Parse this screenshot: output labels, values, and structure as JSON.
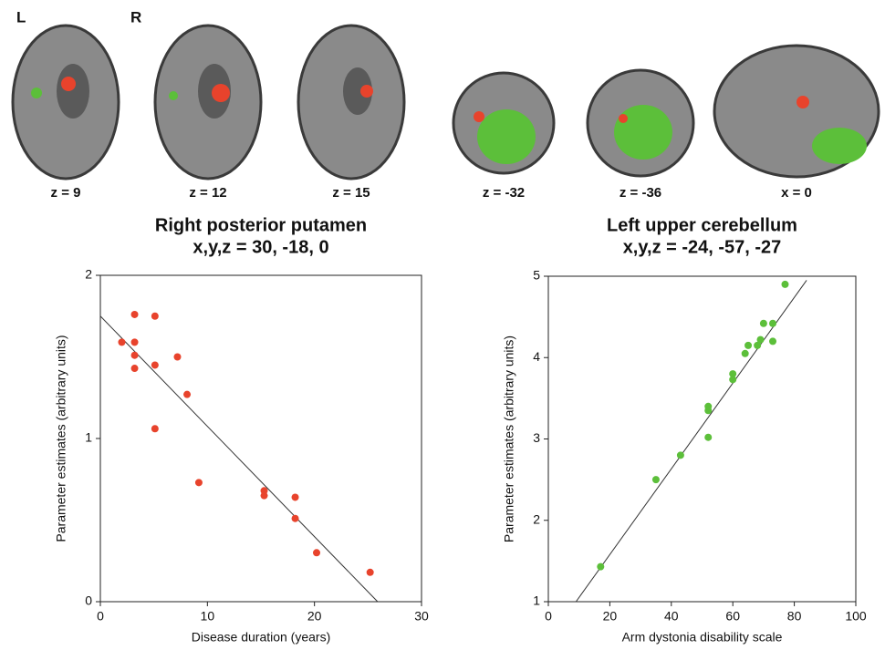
{
  "images": {
    "left_label": "L",
    "right_label": "R",
    "slice_labels": [
      "z = 9",
      "z = 12",
      "z = 15",
      "z = -32",
      "z = -36",
      "x = 0"
    ]
  },
  "chart_data": [
    {
      "type": "scatter",
      "title": "Right posterior putamen",
      "subtitle": "x,y,z = 30, -18, 0",
      "xlabel": "Disease duration  (years)",
      "ylabel": "Parameter estimates (arbitrary units)",
      "xlim": [
        0,
        30
      ],
      "xticks": [
        0,
        10,
        20,
        30
      ],
      "ylim": [
        0,
        2
      ],
      "yticks": [
        0,
        1,
        2
      ],
      "color": "#e8432c",
      "fit_color": "#333333",
      "x": [
        2,
        3.2,
        3.2,
        3.2,
        3.2,
        5.1,
        5.1,
        5.1,
        7.2,
        8.1,
        9.2,
        15.3,
        15.3,
        18.2,
        18.2,
        20.2,
        25.2
      ],
      "y": [
        1.59,
        1.76,
        1.59,
        1.51,
        1.43,
        1.75,
        1.45,
        1.06,
        1.5,
        1.27,
        0.73,
        0.68,
        0.65,
        0.64,
        0.51,
        0.3,
        0.18
      ],
      "fit": {
        "x": [
          0,
          25.9
        ],
        "y": [
          1.75,
          0
        ]
      }
    },
    {
      "type": "scatter",
      "title": "Left upper cerebellum",
      "subtitle": "x,y,z = -24, -57, -27",
      "xlabel": "Arm dystonia disability scale",
      "ylabel": "Parameter estimates (arbitrary units)",
      "xlim": [
        0,
        100
      ],
      "xticks": [
        0,
        20,
        40,
        60,
        80,
        100
      ],
      "ylim": [
        1,
        5
      ],
      "yticks": [
        1,
        2,
        3,
        4,
        5
      ],
      "color": "#5cbf3a",
      "fit_color": "#333333",
      "x": [
        17,
        35,
        43,
        52,
        52,
        52,
        60,
        60,
        64,
        65,
        68,
        69,
        70,
        73,
        73,
        77
      ],
      "y": [
        1.43,
        2.5,
        2.8,
        3.02,
        3.35,
        3.4,
        3.73,
        3.8,
        4.05,
        4.15,
        4.15,
        4.22,
        4.42,
        4.42,
        4.2,
        4.9
      ],
      "fit": {
        "x": [
          9,
          84
        ],
        "y": [
          1,
          4.95
        ]
      }
    }
  ]
}
